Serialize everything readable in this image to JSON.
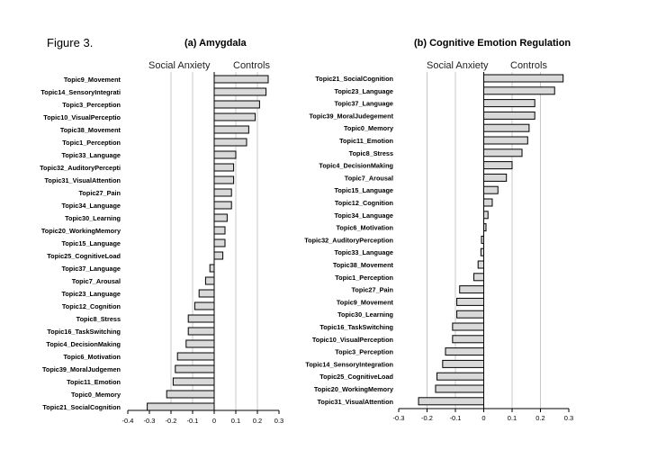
{
  "figure_label": "Figure 3.",
  "chart_data": [
    {
      "type": "bar",
      "orientation": "horizontal",
      "title": "(a) Amygdala",
      "group_labels": {
        "negative": "Social Anxiety",
        "positive": "Controls"
      },
      "xlim": [
        -0.4,
        0.3
      ],
      "xticks": [
        "-0.4",
        "-0.3",
        "-0.2",
        "-0.1",
        "0",
        "0.1",
        "0.2",
        "0.3"
      ],
      "gridlines": [
        -0.2,
        -0.1,
        0.1,
        0.2
      ],
      "legend": "none",
      "categories": [
        "Topic9_Movement",
        "Topic14_SensoryIntegrati",
        "Topic3_Perception",
        "Topic10_VisualPerceptio",
        "Topic38_Movement",
        "Topic1_Perception",
        "Topic33_Language",
        "Topic32_AuditoryPercepti",
        "Topic31_VisualAttention",
        "Topic27_Pain",
        "Topic34_Language",
        "Topic30_Learning",
        "Topic20_WorkingMemory",
        "Topic15_Language",
        "Topic25_CognitiveLoad",
        "Topic37_Language",
        "Topic7_Arousal",
        "Topic23_Language",
        "Topic12_Cognition",
        "Topic8_Stress",
        "Topic16_TaskSwitching",
        "Topic4_DecisionMaking",
        "Topic6_Motivation",
        "Topic39_MoralJudgemen",
        "Topic11_Emotion",
        "Topic0_Memory",
        "Topic21_SocialCognition"
      ],
      "values": [
        0.25,
        0.24,
        0.21,
        0.19,
        0.16,
        0.15,
        0.1,
        0.09,
        0.09,
        0.08,
        0.08,
        0.06,
        0.05,
        0.05,
        0.04,
        -0.02,
        -0.04,
        -0.07,
        -0.09,
        -0.12,
        -0.12,
        -0.13,
        -0.17,
        -0.18,
        -0.19,
        -0.22,
        -0.31
      ]
    },
    {
      "type": "bar",
      "orientation": "horizontal",
      "title": "(b) Cognitive Emotion Regulation",
      "group_labels": {
        "negative": "Social Anxiety",
        "positive": "Controls"
      },
      "xlim": [
        -0.3,
        0.3
      ],
      "xticks": [
        "-0.3",
        "-0.2",
        "-0.1",
        "0",
        "0.1",
        "0.2",
        "0.3"
      ],
      "gridlines": [
        -0.2,
        -0.1,
        0.1,
        0.2
      ],
      "legend": "none",
      "categories": [
        "Topic21_SocialCognition",
        "Topic23_Language",
        "Topic37_Language",
        "Topic39_MoralJudegement",
        "Topic0_Memory",
        "Topic11_Emotion",
        "Topic8_Stress",
        "Topic4_DecisionMaking",
        "Topic7_Arousal",
        "Topic15_Language",
        "Topic12_Cognition",
        "Topic34_Language",
        "Topic6_Motivation",
        "Topic32_AuditoryPerception",
        "Topic33_Language",
        "Topic38_Movement",
        "Topic1_Perception",
        "Topic27_Pain",
        "Topic9_Movement",
        "Topic30_Learning",
        "Topic16_TaskSwitching",
        "Topic10_VisualPerception",
        "Topic3_Perception",
        "Topic14_SensoryIntegration",
        "Topic25_CognitiveLoad",
        "Topic20_WorkingMemory",
        "Topic31_VisualAttention"
      ],
      "values": [
        0.28,
        0.25,
        0.18,
        0.18,
        0.16,
        0.155,
        0.135,
        0.1,
        0.08,
        0.05,
        0.03,
        0.015,
        0.008,
        -0.008,
        -0.01,
        -0.02,
        -0.035,
        -0.085,
        -0.095,
        -0.095,
        -0.11,
        -0.11,
        -0.135,
        -0.145,
        -0.165,
        -0.17,
        -0.23
      ]
    }
  ]
}
